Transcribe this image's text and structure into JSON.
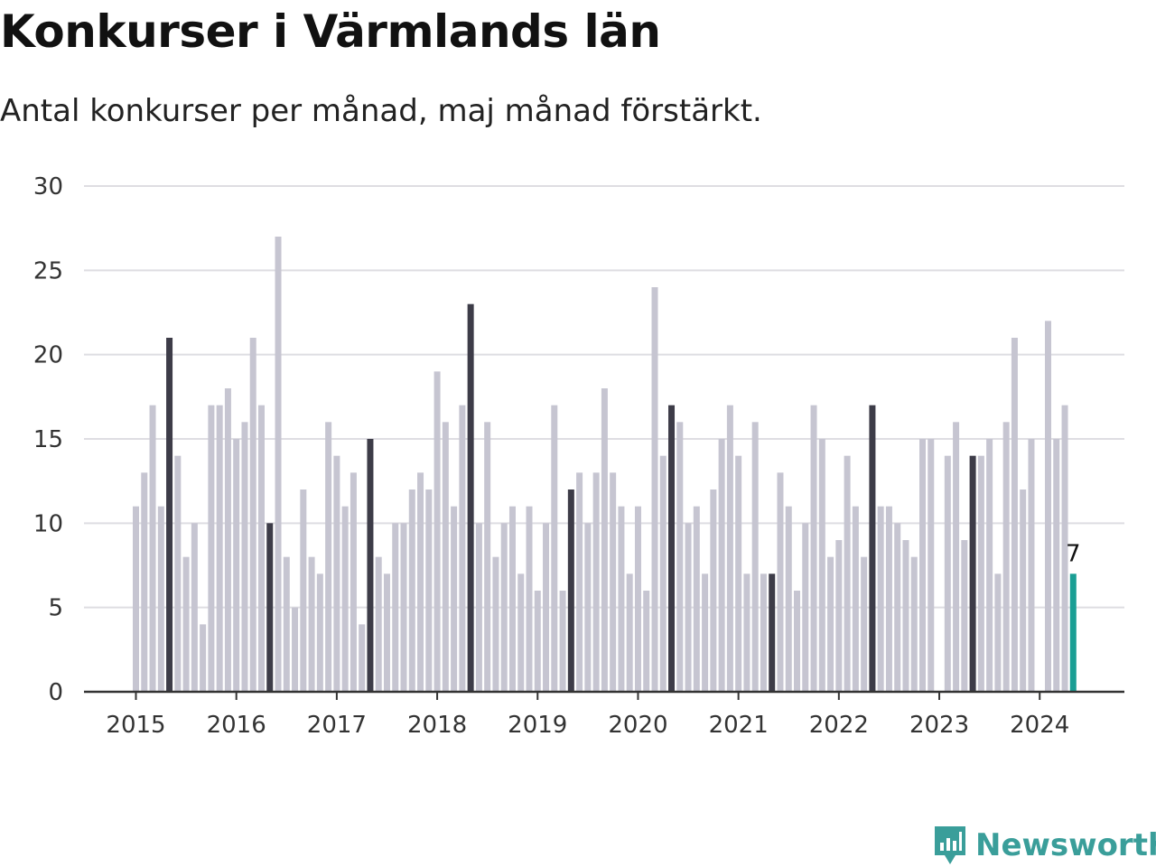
{
  "title": "Konkurser i Värmlands län",
  "subtitle": "Antal konkurser per månad, maj månad förstärkt.",
  "logo": {
    "name": "Newsworthy",
    "icon": "newsworthy-chart-bubble-icon"
  },
  "colors": {
    "base": "#c6c5d1",
    "highlight": "#3d3c48",
    "latest": "#1a9e94",
    "grid": "#dedde2",
    "axis": "#333333",
    "brand": "#3a9e9a"
  },
  "chart_data": {
    "type": "bar",
    "start": "2015-01",
    "highlight_month": "maj",
    "ylim": [
      0,
      30
    ],
    "yticks": [
      0,
      5,
      10,
      15,
      20,
      25,
      30
    ],
    "xticks": [
      "2015",
      "2016",
      "2017",
      "2018",
      "2019",
      "2020",
      "2021",
      "2022",
      "2023",
      "2024"
    ],
    "grid": true,
    "values": [
      11,
      13,
      17,
      11,
      21,
      14,
      8,
      10,
      4,
      17,
      17,
      18,
      15,
      16,
      21,
      17,
      10,
      27,
      8,
      5,
      12,
      8,
      7,
      16,
      14,
      11,
      13,
      4,
      15,
      8,
      7,
      10,
      10,
      12,
      13,
      12,
      19,
      16,
      11,
      17,
      23,
      10,
      16,
      8,
      10,
      11,
      7,
      11,
      6,
      10,
      17,
      6,
      12,
      13,
      10,
      13,
      18,
      13,
      11,
      7,
      11,
      6,
      24,
      14,
      17,
      16,
      10,
      11,
      7,
      12,
      15,
      17,
      14,
      7,
      16,
      7,
      7,
      13,
      11,
      6,
      10,
      17,
      15,
      8,
      9,
      14,
      11,
      8,
      17,
      11,
      11,
      10,
      9,
      8,
      15,
      15,
      0,
      14,
      16,
      9,
      14,
      14,
      15,
      7,
      16,
      21,
      12,
      15,
      0,
      22,
      15,
      17,
      7
    ],
    "annotation": {
      "label": "7",
      "value": 7,
      "month": "2024-05"
    }
  }
}
